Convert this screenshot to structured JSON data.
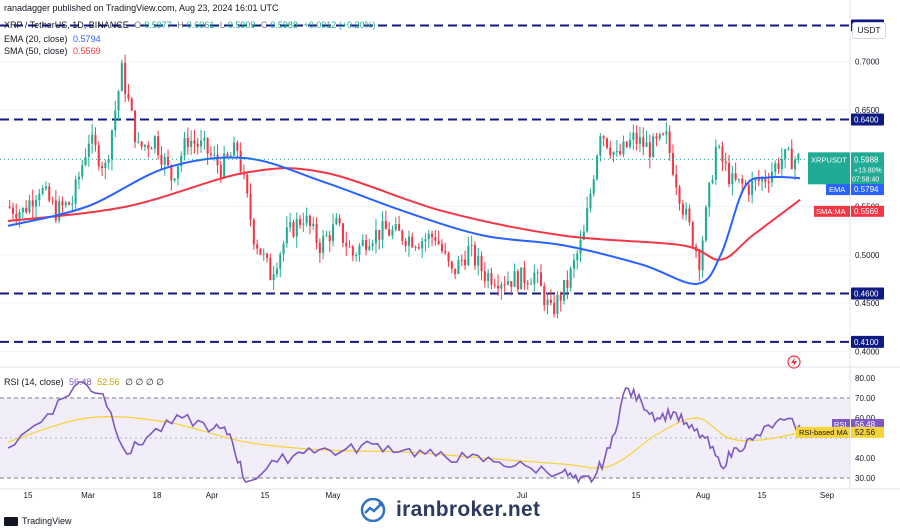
{
  "header": {
    "publisher": "ranadagger published on TradingView.com, Aug 23, 2024 16:01 UTC",
    "symbol": "XRP / TetherUS, 1D, BINANCE",
    "o_label": "O",
    "o": "0.5977",
    "h_label": "H",
    "h": "0.6061",
    "l_label": "L",
    "l": "0.5909",
    "c_label": "C",
    "c": "0.5988",
    "change": "+0.0012 (+0.20%)",
    "ema_label": "EMA (20, close)",
    "ema_value": "0.5794",
    "sma_label": "SMA (50, close)",
    "sma_value": "0.5569",
    "rsi_label": "RSI (14, close)",
    "rsi_value": "56.48",
    "rsi_ma_value": "52.56",
    "rsi_extra": "∅ ∅ ∅ ∅"
  },
  "currency_button": "USDT",
  "footer": {
    "brand": "TradingView",
    "watermark": "iranbroker.net"
  },
  "colors": {
    "up": "#22ab94",
    "down": "#f23645",
    "ema": "#2962ff",
    "sma": "#f23645",
    "rsi": "#7e57c2",
    "rsi_ma": "#f5d33b",
    "level_line": "#0c1a82",
    "label_bg": "#0c1a82"
  },
  "chart_data": [
    {
      "type": "candlestick",
      "title": "XRP / TetherUS, 1D, BINANCE",
      "ylim": [
        0.385,
        0.745
      ],
      "price_ticks": [
        "0.7000",
        "0.6500",
        "0.5500",
        "0.5000",
        "0.4500",
        "0.4000"
      ],
      "x_ticks": [
        "15",
        "Mar",
        "18",
        "Apr",
        "15",
        "May",
        "Jul",
        "15",
        "Aug",
        "15",
        "Sep"
      ],
      "horizontal_levels": [
        "0.7373",
        "0.6400",
        "0.4600",
        "0.4100"
      ],
      "last_price_label": {
        "symbol": "XRPUSDT",
        "price": "0.5988",
        "change": "+13.80%",
        "countdown": "07:58:40"
      },
      "indicator_labels": [
        {
          "name": "EMA",
          "value": "0.5794"
        },
        {
          "name": "SMA:MA",
          "value": "0.5569"
        }
      ],
      "segments_start_end": [
        [
          0.55,
          0.545
        ],
        [
          0.545,
          0.57
        ],
        [
          0.57,
          0.545
        ],
        [
          0.545,
          0.555
        ],
        [
          0.555,
          0.62
        ],
        [
          0.62,
          0.59
        ],
        [
          0.59,
          0.69
        ],
        [
          0.69,
          0.61
        ],
        [
          0.61,
          0.62
        ],
        [
          0.62,
          0.58
        ],
        [
          0.58,
          0.62
        ],
        [
          0.62,
          0.61
        ],
        [
          0.61,
          0.59
        ],
        [
          0.59,
          0.61
        ],
        [
          0.61,
          0.52
        ],
        [
          0.52,
          0.48
        ],
        [
          0.48,
          0.52
        ],
        [
          0.52,
          0.54
        ],
        [
          0.54,
          0.51
        ],
        [
          0.51,
          0.53
        ],
        [
          0.53,
          0.5
        ],
        [
          0.5,
          0.52
        ],
        [
          0.52,
          0.525
        ],
        [
          0.525,
          0.52
        ],
        [
          0.52,
          0.515
        ],
        [
          0.515,
          0.52
        ],
        [
          0.52,
          0.48
        ],
        [
          0.48,
          0.505
        ],
        [
          0.505,
          0.48
        ],
        [
          0.48,
          0.475
        ],
        [
          0.475,
          0.475
        ],
        [
          0.475,
          0.48
        ],
        [
          0.48,
          0.44
        ],
        [
          0.44,
          0.47
        ],
        [
          0.47,
          0.52
        ],
        [
          0.52,
          0.63
        ],
        [
          0.63,
          0.6
        ],
        [
          0.6,
          0.62
        ],
        [
          0.62,
          0.61
        ],
        [
          0.61,
          0.62
        ],
        [
          0.62,
          0.55
        ],
        [
          0.55,
          0.495
        ],
        [
          0.495,
          0.61
        ],
        [
          0.61,
          0.575
        ],
        [
          0.575,
          0.57
        ],
        [
          0.57,
          0.58
        ],
        [
          0.58,
          0.6
        ],
        [
          0.6,
          0.5988
        ]
      ],
      "ema20_points": [
        [
          0.0,
          0.53
        ],
        [
          0.1,
          0.55
        ],
        [
          0.2,
          0.59
        ],
        [
          0.3,
          0.6
        ],
        [
          0.4,
          0.575
        ],
        [
          0.5,
          0.545
        ],
        [
          0.6,
          0.52
        ],
        [
          0.7,
          0.51
        ],
        [
          0.8,
          0.49
        ],
        [
          0.87,
          0.47
        ],
        [
          0.9,
          0.5
        ],
        [
          0.93,
          0.57
        ],
        [
          0.96,
          0.58
        ],
        [
          1.0,
          0.5794
        ]
      ],
      "sma50_points": [
        [
          0.0,
          0.535
        ],
        [
          0.15,
          0.55
        ],
        [
          0.3,
          0.585
        ],
        [
          0.4,
          0.585
        ],
        [
          0.55,
          0.545
        ],
        [
          0.7,
          0.52
        ],
        [
          0.85,
          0.51
        ],
        [
          0.9,
          0.495
        ],
        [
          0.94,
          0.52
        ],
        [
          1.0,
          0.5569
        ]
      ]
    },
    {
      "type": "line",
      "title": "RSI (14, close)",
      "ylim": [
        25,
        85
      ],
      "y_ticks": [
        "80.00",
        "70.00",
        "60.00",
        "40.00",
        "30.00"
      ],
      "band": [
        30,
        70
      ],
      "series": [
        {
          "name": "RSI",
          "points": [
            [
              0.0,
              45
            ],
            [
              0.05,
              62
            ],
            [
              0.09,
              78
            ],
            [
              0.12,
              72
            ],
            [
              0.15,
              42
            ],
            [
              0.18,
              52
            ],
            [
              0.22,
              60
            ],
            [
              0.26,
              55
            ],
            [
              0.28,
              52
            ],
            [
              0.3,
              28
            ],
            [
              0.34,
              38
            ],
            [
              0.38,
              45
            ],
            [
              0.42,
              43
            ],
            [
              0.46,
              47
            ],
            [
              0.5,
              44
            ],
            [
              0.54,
              41
            ],
            [
              0.58,
              40
            ],
            [
              0.62,
              38
            ],
            [
              0.66,
              35
            ],
            [
              0.7,
              33
            ],
            [
              0.72,
              28
            ],
            [
              0.74,
              30
            ],
            [
              0.76,
              45
            ],
            [
              0.78,
              75
            ],
            [
              0.8,
              68
            ],
            [
              0.82,
              60
            ],
            [
              0.84,
              63
            ],
            [
              0.86,
              55
            ],
            [
              0.88,
              50
            ],
            [
              0.9,
              36
            ],
            [
              0.92,
              45
            ],
            [
              0.94,
              49
            ],
            [
              0.97,
              58
            ],
            [
              1.0,
              56.48
            ]
          ]
        },
        {
          "name": "RSI-based MA",
          "points": [
            [
              0.0,
              48
            ],
            [
              0.1,
              60
            ],
            [
              0.2,
              58
            ],
            [
              0.3,
              48
            ],
            [
              0.4,
              44
            ],
            [
              0.5,
              43
            ],
            [
              0.6,
              40
            ],
            [
              0.7,
              37
            ],
            [
              0.76,
              36
            ],
            [
              0.82,
              52
            ],
            [
              0.87,
              60
            ],
            [
              0.91,
              50
            ],
            [
              0.95,
              49
            ],
            [
              1.0,
              52.56
            ]
          ]
        }
      ]
    }
  ]
}
